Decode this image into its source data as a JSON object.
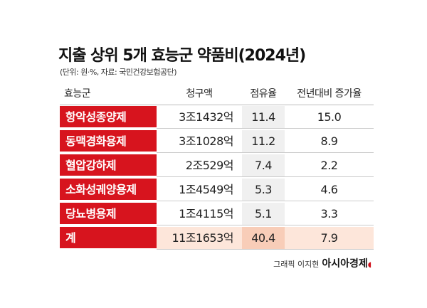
{
  "header": {
    "title": "지출 상위 5개 효능군 약품비(2024년)",
    "subtitle": "(단위: 원·%, 자료: 국민건강보험공단)"
  },
  "table": {
    "columns": [
      "효능군",
      "청구액",
      "점유율",
      "전년대비 증가율"
    ],
    "rows": [
      [
        "항악성종양제",
        "3조1432억",
        "11.4",
        "15.0"
      ],
      [
        "동맥경화용제",
        "3조1028억",
        "11.2",
        "8.9"
      ],
      [
        "혈압강하제",
        "2조529억",
        "7.4",
        "2.2"
      ],
      [
        "소화성궤양용제",
        "1조4549억",
        "5.3",
        "4.6"
      ],
      [
        "당뇨병용제",
        "1조4115억",
        "5.1",
        "3.3"
      ]
    ],
    "total": [
      "계",
      "11조1653억",
      "40.4",
      "7.9"
    ]
  },
  "credit": {
    "graphic": "그래픽 이지현",
    "source": "아시아경제"
  }
}
